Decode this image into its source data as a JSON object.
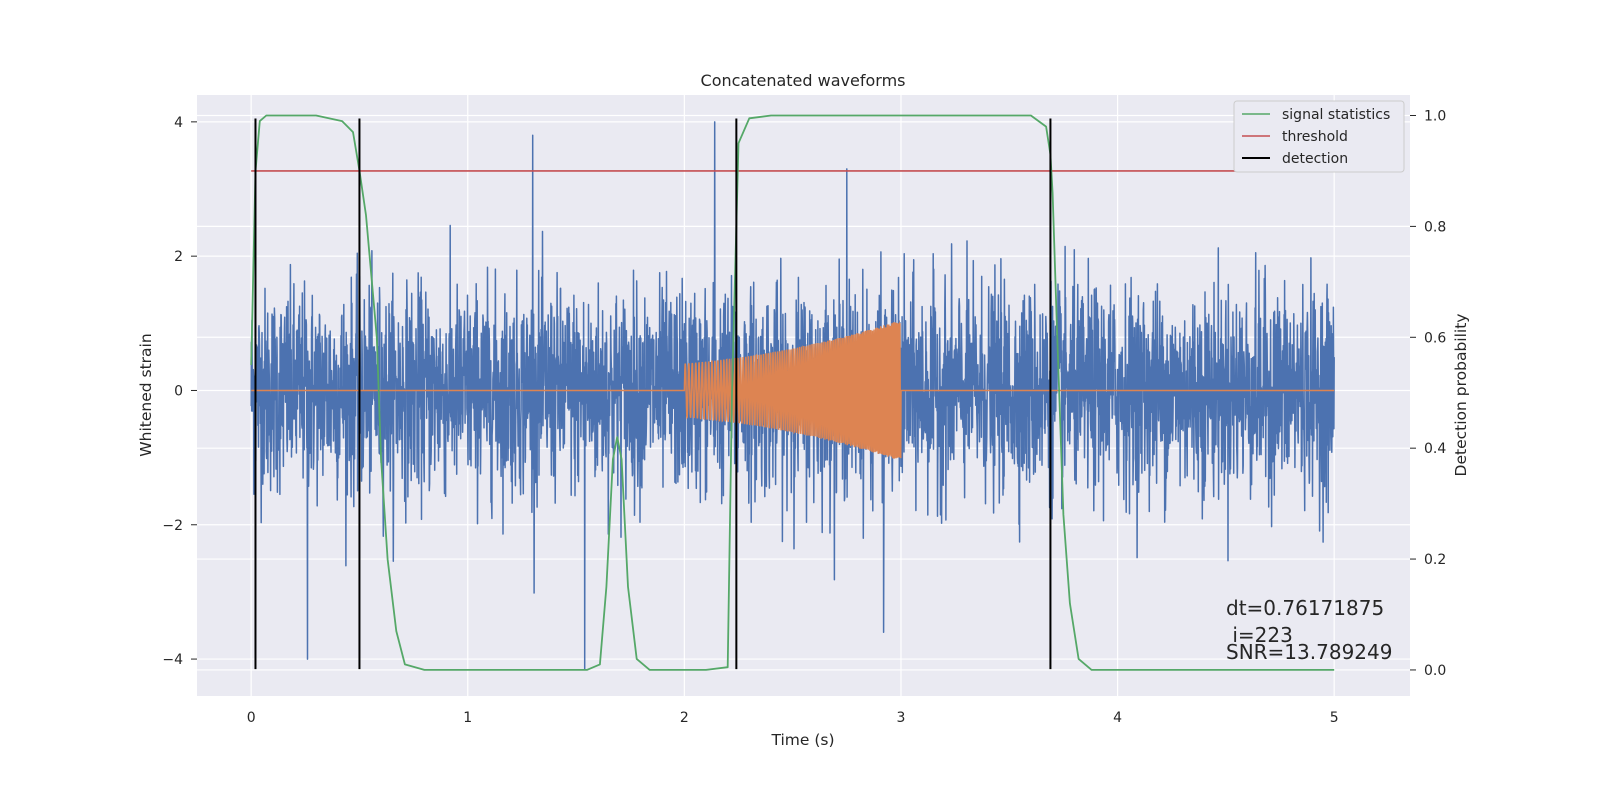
{
  "chart_data": {
    "type": "line",
    "title": "Concatenated waveforms",
    "xlabel": "Time (s)",
    "ylabel": "Whitened strain",
    "y2label": "Detection probability",
    "xlim": [
      -0.25,
      5.35
    ],
    "ylim": [
      -4.55,
      4.4
    ],
    "y2lim": [
      -0.047,
      1.037
    ],
    "xticks": [
      0,
      1,
      2,
      3,
      4,
      5
    ],
    "yticks": [
      -4,
      -2,
      0,
      2,
      4
    ],
    "y2ticks": [
      0.0,
      0.2,
      0.4,
      0.6,
      0.8,
      1.0
    ],
    "xtick_labels": [
      "0",
      "1",
      "2",
      "3",
      "4",
      "5"
    ],
    "ytick_labels": [
      "−4",
      "−2",
      "0",
      "2",
      "4"
    ],
    "y2tick_labels": [
      "0.0",
      "0.2",
      "0.4",
      "0.6",
      "0.8",
      "1.0"
    ],
    "grid": true,
    "legend_position": "top-right",
    "legend": [
      "signal statistics",
      "threshold",
      "detection"
    ],
    "series": [
      {
        "name": "whitened strain",
        "axis": "left",
        "color": "#4c72b0",
        "noise_std": 0.75,
        "x_range": [
          0,
          5
        ],
        "spike_peaks": [
          [
            0.26,
            -4.0
          ],
          [
            1.3,
            3.8
          ],
          [
            1.54,
            -4.15
          ],
          [
            2.14,
            4.0
          ],
          [
            2.75,
            3.3
          ],
          [
            2.92,
            -3.6
          ]
        ]
      },
      {
        "name": "injected chirp",
        "axis": "left",
        "color": "#dd8452",
        "active_range": [
          2.0,
          3.0
        ],
        "amplitude_start": 0.4,
        "amplitude_end": 1.05
      },
      {
        "name": "signal statistics",
        "axis": "right",
        "color": "#55a868",
        "points": [
          [
            0,
            0.55
          ],
          [
            0.02,
            0.9
          ],
          [
            0.04,
            0.99
          ],
          [
            0.07,
            1.0
          ],
          [
            0.3,
            1.0
          ],
          [
            0.42,
            0.99
          ],
          [
            0.47,
            0.97
          ],
          [
            0.5,
            0.9
          ],
          [
            0.53,
            0.82
          ],
          [
            0.58,
            0.6
          ],
          [
            0.6,
            0.38
          ],
          [
            0.63,
            0.2
          ],
          [
            0.67,
            0.07
          ],
          [
            0.71,
            0.01
          ],
          [
            0.8,
            0.0
          ],
          [
            1.2,
            0.0
          ],
          [
            1.55,
            0.0
          ],
          [
            1.61,
            0.01
          ],
          [
            1.64,
            0.15
          ],
          [
            1.67,
            0.38
          ],
          [
            1.69,
            0.42
          ],
          [
            1.71,
            0.38
          ],
          [
            1.74,
            0.15
          ],
          [
            1.78,
            0.02
          ],
          [
            1.84,
            0.0
          ],
          [
            2.0,
            0.0
          ],
          [
            2.1,
            0.0
          ],
          [
            2.2,
            0.005
          ],
          [
            2.22,
            0.5
          ],
          [
            2.25,
            0.95
          ],
          [
            2.3,
            0.995
          ],
          [
            2.4,
            1.0
          ],
          [
            3.6,
            1.0
          ],
          [
            3.67,
            0.98
          ],
          [
            3.69,
            0.93
          ],
          [
            3.7,
            0.86
          ],
          [
            3.72,
            0.62
          ],
          [
            3.75,
            0.28
          ],
          [
            3.78,
            0.12
          ],
          [
            3.82,
            0.02
          ],
          [
            3.88,
            0.0
          ],
          [
            4.0,
            0.0
          ],
          [
            5.0,
            0.0
          ]
        ]
      },
      {
        "name": "threshold",
        "axis": "right",
        "color": "#c44e52",
        "x": [
          0,
          5.1
        ],
        "value": 0.9
      },
      {
        "name": "detection",
        "axis": "left",
        "color": "#000000",
        "x_positions": [
          0.02,
          0.5,
          2.24,
          3.69
        ],
        "y_range": [
          -4.15,
          4.05
        ]
      }
    ],
    "annotations": [
      {
        "text": "dt=0.76171875"
      },
      {
        "text": " i=223"
      },
      {
        "text": "SNR=13.789249"
      }
    ]
  }
}
